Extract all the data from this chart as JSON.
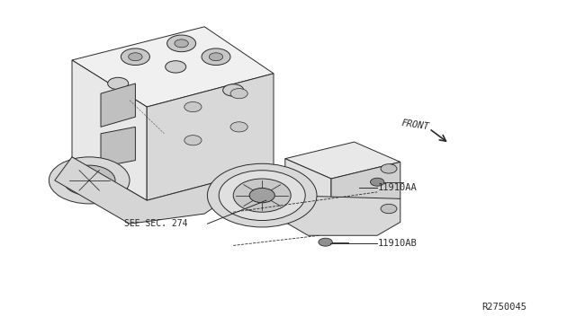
{
  "background_color": "#ffffff",
  "fig_width": 6.4,
  "fig_height": 3.72,
  "dpi": 100,
  "part_labels": {
    "11910AA": {
      "text": "11910AA",
      "fontsize": 7.5
    },
    "11910AB": {
      "text": "11910AB",
      "fontsize": 7.5
    }
  },
  "see_sec_label": {
    "text": "SEE SEC. 274",
    "fontsize": 7.0
  },
  "front_label": {
    "text": "FRONT",
    "fontsize": 7.5,
    "rotation": -8
  },
  "diagram_id": {
    "text": "R2750045",
    "fontsize": 7.5
  },
  "line_color": "#2a2a2a",
  "text_color": "#2a2a2a"
}
